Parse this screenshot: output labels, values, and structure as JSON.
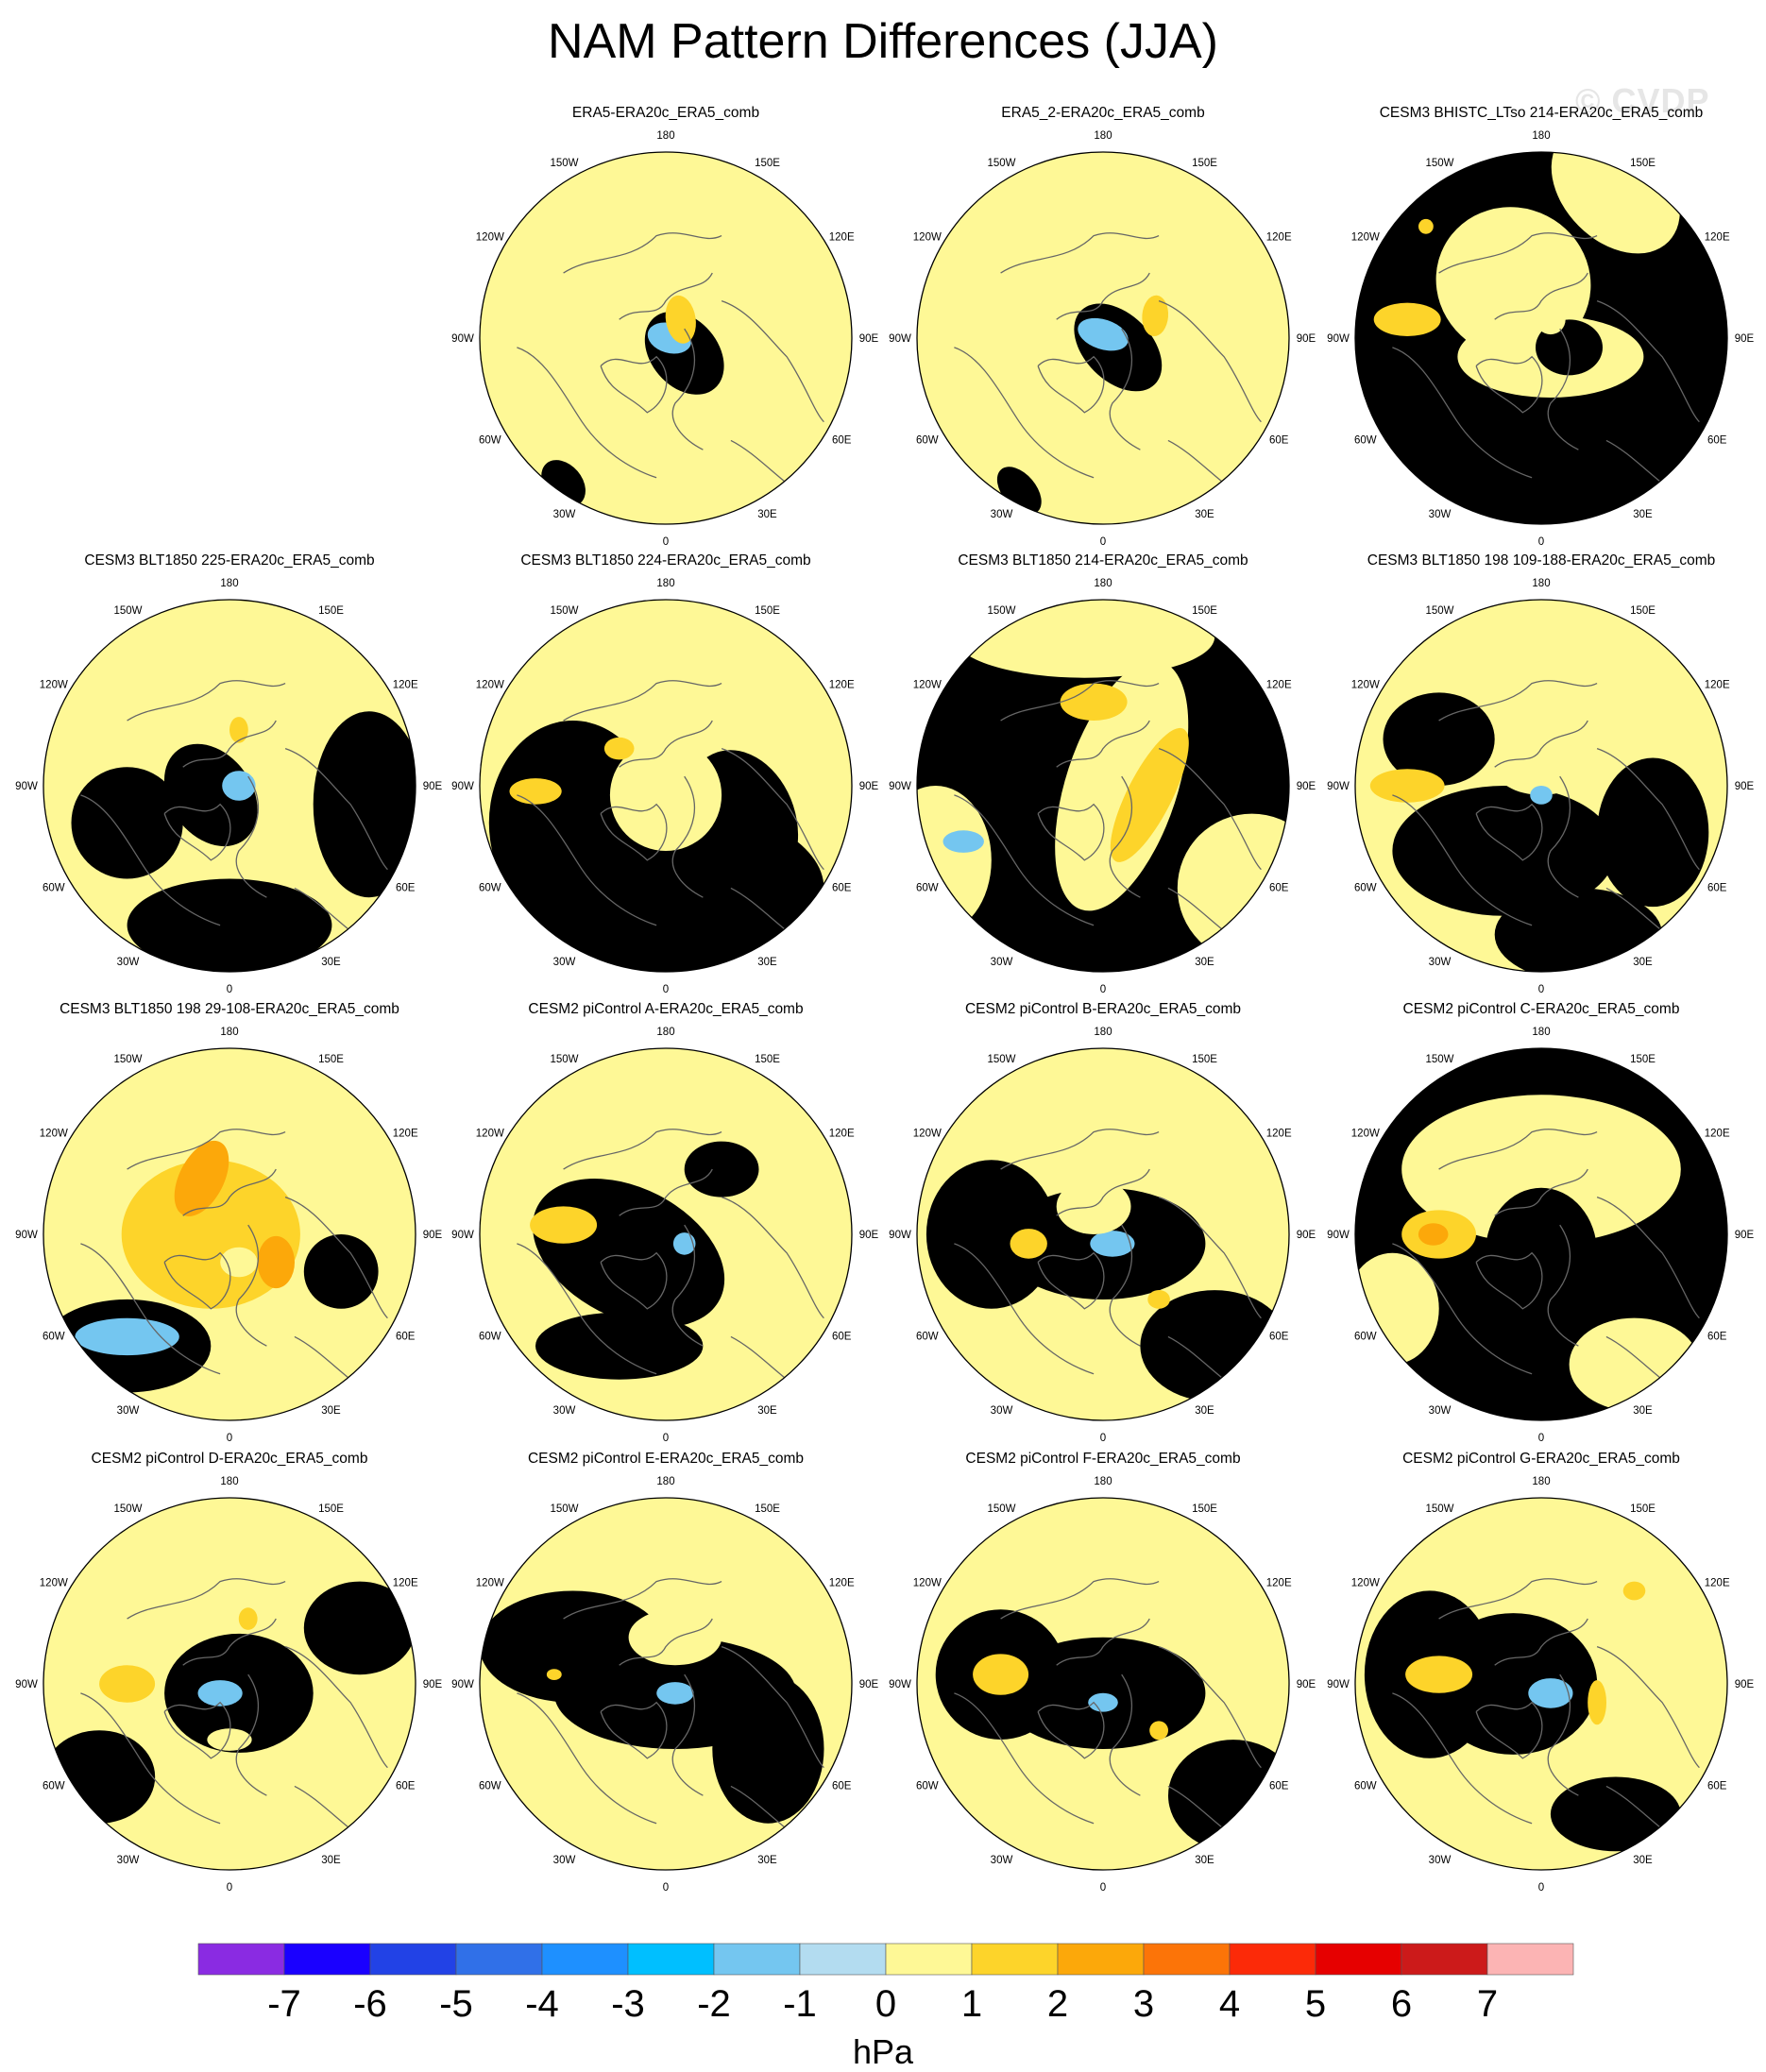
{
  "title": "NAM Pattern Differences (JJA)",
  "watermark": "© CVDP",
  "lon_labels": [
    "180",
    "150E",
    "120E",
    "90E",
    "60E",
    "30E",
    "0",
    "30W",
    "60W",
    "90W",
    "120W",
    "150W"
  ],
  "colors": {
    "ocean_neg1": "#b3dcf0",
    "pos1": "#fef896",
    "pos2": "#fdd42a",
    "pos3": "#fca80a",
    "neg2": "#74c6f0",
    "neg3": "#2db8f6",
    "coast": "#666666"
  },
  "panels": [
    {
      "title": "ERA5-ERA20c_ERA5_comb",
      "base": "pos1",
      "blobs": [
        [
          "neg1",
          0.1,
          0.08,
          0.55,
          0.25,
          0.18
        ],
        [
          "neg1",
          0.05,
          0.05,
          0.3,
          0.15,
          0.12
        ],
        [
          "neg2",
          0.02,
          0.0,
          0.18,
          0.12,
          0.08
        ],
        [
          "pos2",
          0.08,
          -0.1,
          -0.1,
          0.08,
          0.13
        ],
        [
          "neg1",
          -0.55,
          0.78,
          0.55,
          0.14,
          0.1
        ]
      ]
    },
    {
      "title": "ERA5_2-ERA20c_ERA5_comb",
      "base": "pos1",
      "blobs": [
        [
          "neg1",
          0.08,
          0.05,
          0.5,
          0.28,
          0.18
        ],
        [
          "neg2",
          0.0,
          -0.02,
          0.2,
          0.14,
          0.08
        ],
        [
          "pos2",
          0.28,
          -0.12,
          0.05,
          0.07,
          0.11
        ],
        [
          "neg1",
          -0.45,
          0.82,
          0.55,
          0.15,
          0.09
        ]
      ]
    },
    {
      "title": "CESM3 BHISTC_LTso 214-ERA20c_ERA5_comb",
      "base": "neg1",
      "blobs": [
        [
          "pos1",
          -0.15,
          -0.3,
          0.3,
          0.42,
          0.4
        ],
        [
          "pos1",
          0.05,
          0.1,
          0.0,
          0.5,
          0.22
        ],
        [
          "pos2",
          -0.72,
          -0.1,
          0.0,
          0.18,
          0.09
        ],
        [
          "pos2",
          -0.62,
          -0.6,
          0.0,
          0.04,
          0.04
        ],
        [
          "pos1",
          0.4,
          -0.8,
          0.5,
          0.4,
          0.28
        ],
        [
          "neg1",
          0.15,
          0.05,
          0.0,
          0.18,
          0.15
        ],
        [
          "pos1",
          0.05,
          -0.1,
          0.0,
          0.08,
          0.08
        ]
      ]
    },
    {
      "title": "CESM3 BLT1850 225-ERA20c_ERA5_comb",
      "base": "pos1",
      "blobs": [
        [
          "neg1",
          -0.1,
          0.05,
          0.6,
          0.3,
          0.22
        ],
        [
          "neg1",
          0.0,
          0.75,
          0.0,
          0.55,
          0.25
        ],
        [
          "neg1",
          0.75,
          0.1,
          0.0,
          0.3,
          0.5
        ],
        [
          "neg1",
          -0.55,
          0.2,
          0.0,
          0.3,
          0.3
        ],
        [
          "neg2",
          0.05,
          0.0,
          0.0,
          0.09,
          0.08
        ],
        [
          "pos2",
          0.05,
          -0.3,
          0.0,
          0.05,
          0.07
        ]
      ]
    },
    {
      "title": "CESM3 BLT1850 224-ERA20c_ERA5_comb",
      "base": "pos1",
      "blobs": [
        [
          "neg1",
          0.0,
          0.55,
          0.0,
          0.85,
          0.45
        ],
        [
          "neg1",
          -0.5,
          0.2,
          0.0,
          0.45,
          0.55
        ],
        [
          "neg1",
          0.4,
          0.2,
          0.8,
          0.4,
          0.3
        ],
        [
          "pos1",
          0.0,
          0.05,
          0.0,
          0.3,
          0.3
        ],
        [
          "pos2",
          -0.25,
          -0.2,
          0.0,
          0.08,
          0.06
        ],
        [
          "pos2",
          -0.7,
          0.03,
          0.0,
          0.14,
          0.07
        ]
      ]
    },
    {
      "title": "CESM3 BLT1850 214-ERA20c_ERA5_comb",
      "base": "neg1",
      "blobs": [
        [
          "pos1",
          0.1,
          0.0,
          0.2,
          0.3,
          0.7
        ],
        [
          "pos1",
          -0.1,
          -0.8,
          0.0,
          0.7,
          0.22
        ],
        [
          "pos1",
          0.8,
          0.55,
          0.0,
          0.4,
          0.4
        ],
        [
          "pos1",
          -0.9,
          0.4,
          0.0,
          0.3,
          0.4
        ],
        [
          "pos2",
          0.25,
          0.05,
          0.3,
          0.12,
          0.4
        ],
        [
          "pos2",
          -0.05,
          -0.45,
          0.0,
          0.18,
          0.1
        ],
        [
          "neg2",
          -0.75,
          0.3,
          0.0,
          0.11,
          0.06
        ]
      ]
    },
    {
      "title": "CESM3 BLT1850 198 109-188-ERA20c_ERA5_comb",
      "base": "pos1",
      "blobs": [
        [
          "neg1",
          -0.2,
          0.35,
          0.0,
          0.6,
          0.35
        ],
        [
          "neg1",
          0.6,
          0.25,
          0.0,
          0.3,
          0.4
        ],
        [
          "neg1",
          -0.55,
          -0.25,
          0.0,
          0.3,
          0.25
        ],
        [
          "neg1",
          0.2,
          0.8,
          0.0,
          0.45,
          0.25
        ],
        [
          "pos1",
          0.0,
          -0.1,
          0.0,
          0.25,
          0.15
        ],
        [
          "pos2",
          -0.72,
          0.0,
          0.0,
          0.2,
          0.09
        ],
        [
          "neg2",
          0.0,
          0.05,
          0.0,
          0.06,
          0.05
        ]
      ]
    },
    {
      "title": "CESM3 BLT1850 198 29-108-ERA20c_ERA5_comb",
      "base": "pos1",
      "blobs": [
        [
          "pos2",
          -0.1,
          0.0,
          0.0,
          0.48,
          0.4
        ],
        [
          "pos3",
          -0.15,
          -0.3,
          0.3,
          0.12,
          0.22
        ],
        [
          "pos3",
          0.25,
          0.15,
          0.0,
          0.1,
          0.14
        ],
        [
          "neg1",
          -0.55,
          0.6,
          0.0,
          0.45,
          0.25
        ],
        [
          "neg2",
          -0.55,
          0.55,
          0.0,
          0.28,
          0.1
        ],
        [
          "neg1",
          0.6,
          0.2,
          0.0,
          0.2,
          0.2
        ],
        [
          "pos1",
          0.05,
          0.15,
          0.0,
          0.1,
          0.08
        ]
      ]
    },
    {
      "title": "CESM2 piControl A-ERA20c_ERA5_comb",
      "base": "pos1",
      "blobs": [
        [
          "neg1",
          -0.2,
          0.1,
          0.3,
          0.55,
          0.35
        ],
        [
          "neg1",
          -0.25,
          0.6,
          0.0,
          0.45,
          0.18
        ],
        [
          "neg1",
          0.3,
          -0.35,
          0.0,
          0.2,
          0.15
        ],
        [
          "pos2",
          -0.55,
          -0.05,
          0.0,
          0.18,
          0.1
        ],
        [
          "neg2",
          0.1,
          0.05,
          0.0,
          0.06,
          0.06
        ]
      ]
    },
    {
      "title": "CESM2 piControl B-ERA20c_ERA5_comb",
      "base": "pos1",
      "blobs": [
        [
          "neg1",
          0.0,
          0.05,
          0.0,
          0.55,
          0.3
        ],
        [
          "neg1",
          -0.6,
          0.0,
          0.0,
          0.35,
          0.4
        ],
        [
          "neg1",
          0.6,
          0.6,
          0.0,
          0.4,
          0.3
        ],
        [
          "neg2",
          0.05,
          0.05,
          0.0,
          0.12,
          0.07
        ],
        [
          "pos2",
          -0.4,
          0.05,
          0.0,
          0.1,
          0.08
        ],
        [
          "pos2",
          0.3,
          0.35,
          0.0,
          0.06,
          0.05
        ],
        [
          "pos1",
          -0.05,
          -0.15,
          0.0,
          0.2,
          0.15
        ]
      ]
    },
    {
      "title": "CESM2 piControl C-ERA20c_ERA5_comb",
      "base": "neg1",
      "blobs": [
        [
          "pos1",
          0.0,
          -0.35,
          0.0,
          0.75,
          0.4
        ],
        [
          "pos1",
          -0.8,
          0.4,
          0.0,
          0.25,
          0.3
        ],
        [
          "pos1",
          0.5,
          0.7,
          0.0,
          0.35,
          0.25
        ],
        [
          "pos2",
          -0.55,
          0.0,
          0.0,
          0.2,
          0.13
        ],
        [
          "pos3",
          -0.58,
          0.0,
          0.0,
          0.08,
          0.06
        ],
        [
          "neg1",
          0.0,
          0.1,
          0.0,
          0.3,
          0.35
        ]
      ]
    },
    {
      "title": "CESM2 piControl D-ERA20c_ERA5_comb",
      "base": "pos1",
      "blobs": [
        [
          "neg1",
          0.05,
          0.05,
          0.0,
          0.4,
          0.32
        ],
        [
          "neg1",
          -0.7,
          0.5,
          0.0,
          0.3,
          0.25
        ],
        [
          "neg1",
          0.7,
          -0.3,
          0.0,
          0.3,
          0.25
        ],
        [
          "neg2",
          -0.05,
          0.05,
          0.0,
          0.12,
          0.07
        ],
        [
          "pos2",
          -0.55,
          0.0,
          0.0,
          0.15,
          0.1
        ],
        [
          "pos2",
          0.1,
          -0.35,
          0.0,
          0.05,
          0.06
        ],
        [
          "pos1",
          0.0,
          0.3,
          0.0,
          0.12,
          0.06
        ]
      ]
    },
    {
      "title": "CESM2 piControl E-ERA20c_ERA5_comb",
      "base": "pos1",
      "blobs": [
        [
          "neg1",
          0.05,
          0.05,
          0.0,
          0.65,
          0.3
        ],
        [
          "neg1",
          -0.5,
          -0.2,
          0.0,
          0.5,
          0.3
        ],
        [
          "neg1",
          0.55,
          0.35,
          0.0,
          0.3,
          0.4
        ],
        [
          "neg2",
          0.05,
          0.05,
          0.0,
          0.1,
          0.06
        ],
        [
          "pos2",
          -0.6,
          -0.05,
          0.0,
          0.04,
          0.03
        ],
        [
          "pos1",
          0.05,
          -0.25,
          0.0,
          0.25,
          0.15
        ]
      ]
    },
    {
      "title": "CESM2 piControl F-ERA20c_ERA5_comb",
      "base": "pos1",
      "blobs": [
        [
          "neg1",
          0.0,
          0.05,
          0.0,
          0.55,
          0.3
        ],
        [
          "neg1",
          -0.55,
          -0.05,
          0.0,
          0.35,
          0.35
        ],
        [
          "neg1",
          0.7,
          0.6,
          0.0,
          0.35,
          0.3
        ],
        [
          "neg2",
          0.0,
          0.1,
          0.0,
          0.08,
          0.05
        ],
        [
          "pos2",
          -0.55,
          -0.05,
          0.0,
          0.15,
          0.11
        ],
        [
          "pos2",
          0.3,
          0.25,
          0.0,
          0.05,
          0.05
        ]
      ]
    },
    {
      "title": "CESM2 piControl G-ERA20c_ERA5_comb",
      "base": "pos1",
      "blobs": [
        [
          "neg1",
          -0.15,
          0.0,
          0.0,
          0.45,
          0.38
        ],
        [
          "neg1",
          -0.6,
          -0.05,
          0.0,
          0.35,
          0.45
        ],
        [
          "neg1",
          0.4,
          0.7,
          0.0,
          0.35,
          0.2
        ],
        [
          "neg2",
          0.05,
          0.05,
          0.0,
          0.12,
          0.08
        ],
        [
          "pos2",
          -0.55,
          -0.05,
          0.0,
          0.18,
          0.1
        ],
        [
          "pos2",
          0.3,
          0.1,
          0.0,
          0.05,
          0.12
        ],
        [
          "pos2",
          0.5,
          -0.5,
          0.0,
          0.06,
          0.05
        ]
      ]
    }
  ],
  "colorbar": {
    "colors": [
      "#8a2be2",
      "#1a00ff",
      "#2242e6",
      "#3070e8",
      "#1e90ff",
      "#00bfff",
      "#74c6f0",
      "#b3dcf0",
      "#fef896",
      "#fdd42a",
      "#fca80a",
      "#fc7408",
      "#fc2a08",
      "#e60000",
      "#cc1a1a",
      "#fcb4b4"
    ],
    "labels": [
      "-7",
      "-6",
      "-5",
      "-4",
      "-3",
      "-2",
      "-1",
      "0",
      "1",
      "2",
      "3",
      "4",
      "5",
      "6",
      "7"
    ],
    "units": "hPa"
  }
}
